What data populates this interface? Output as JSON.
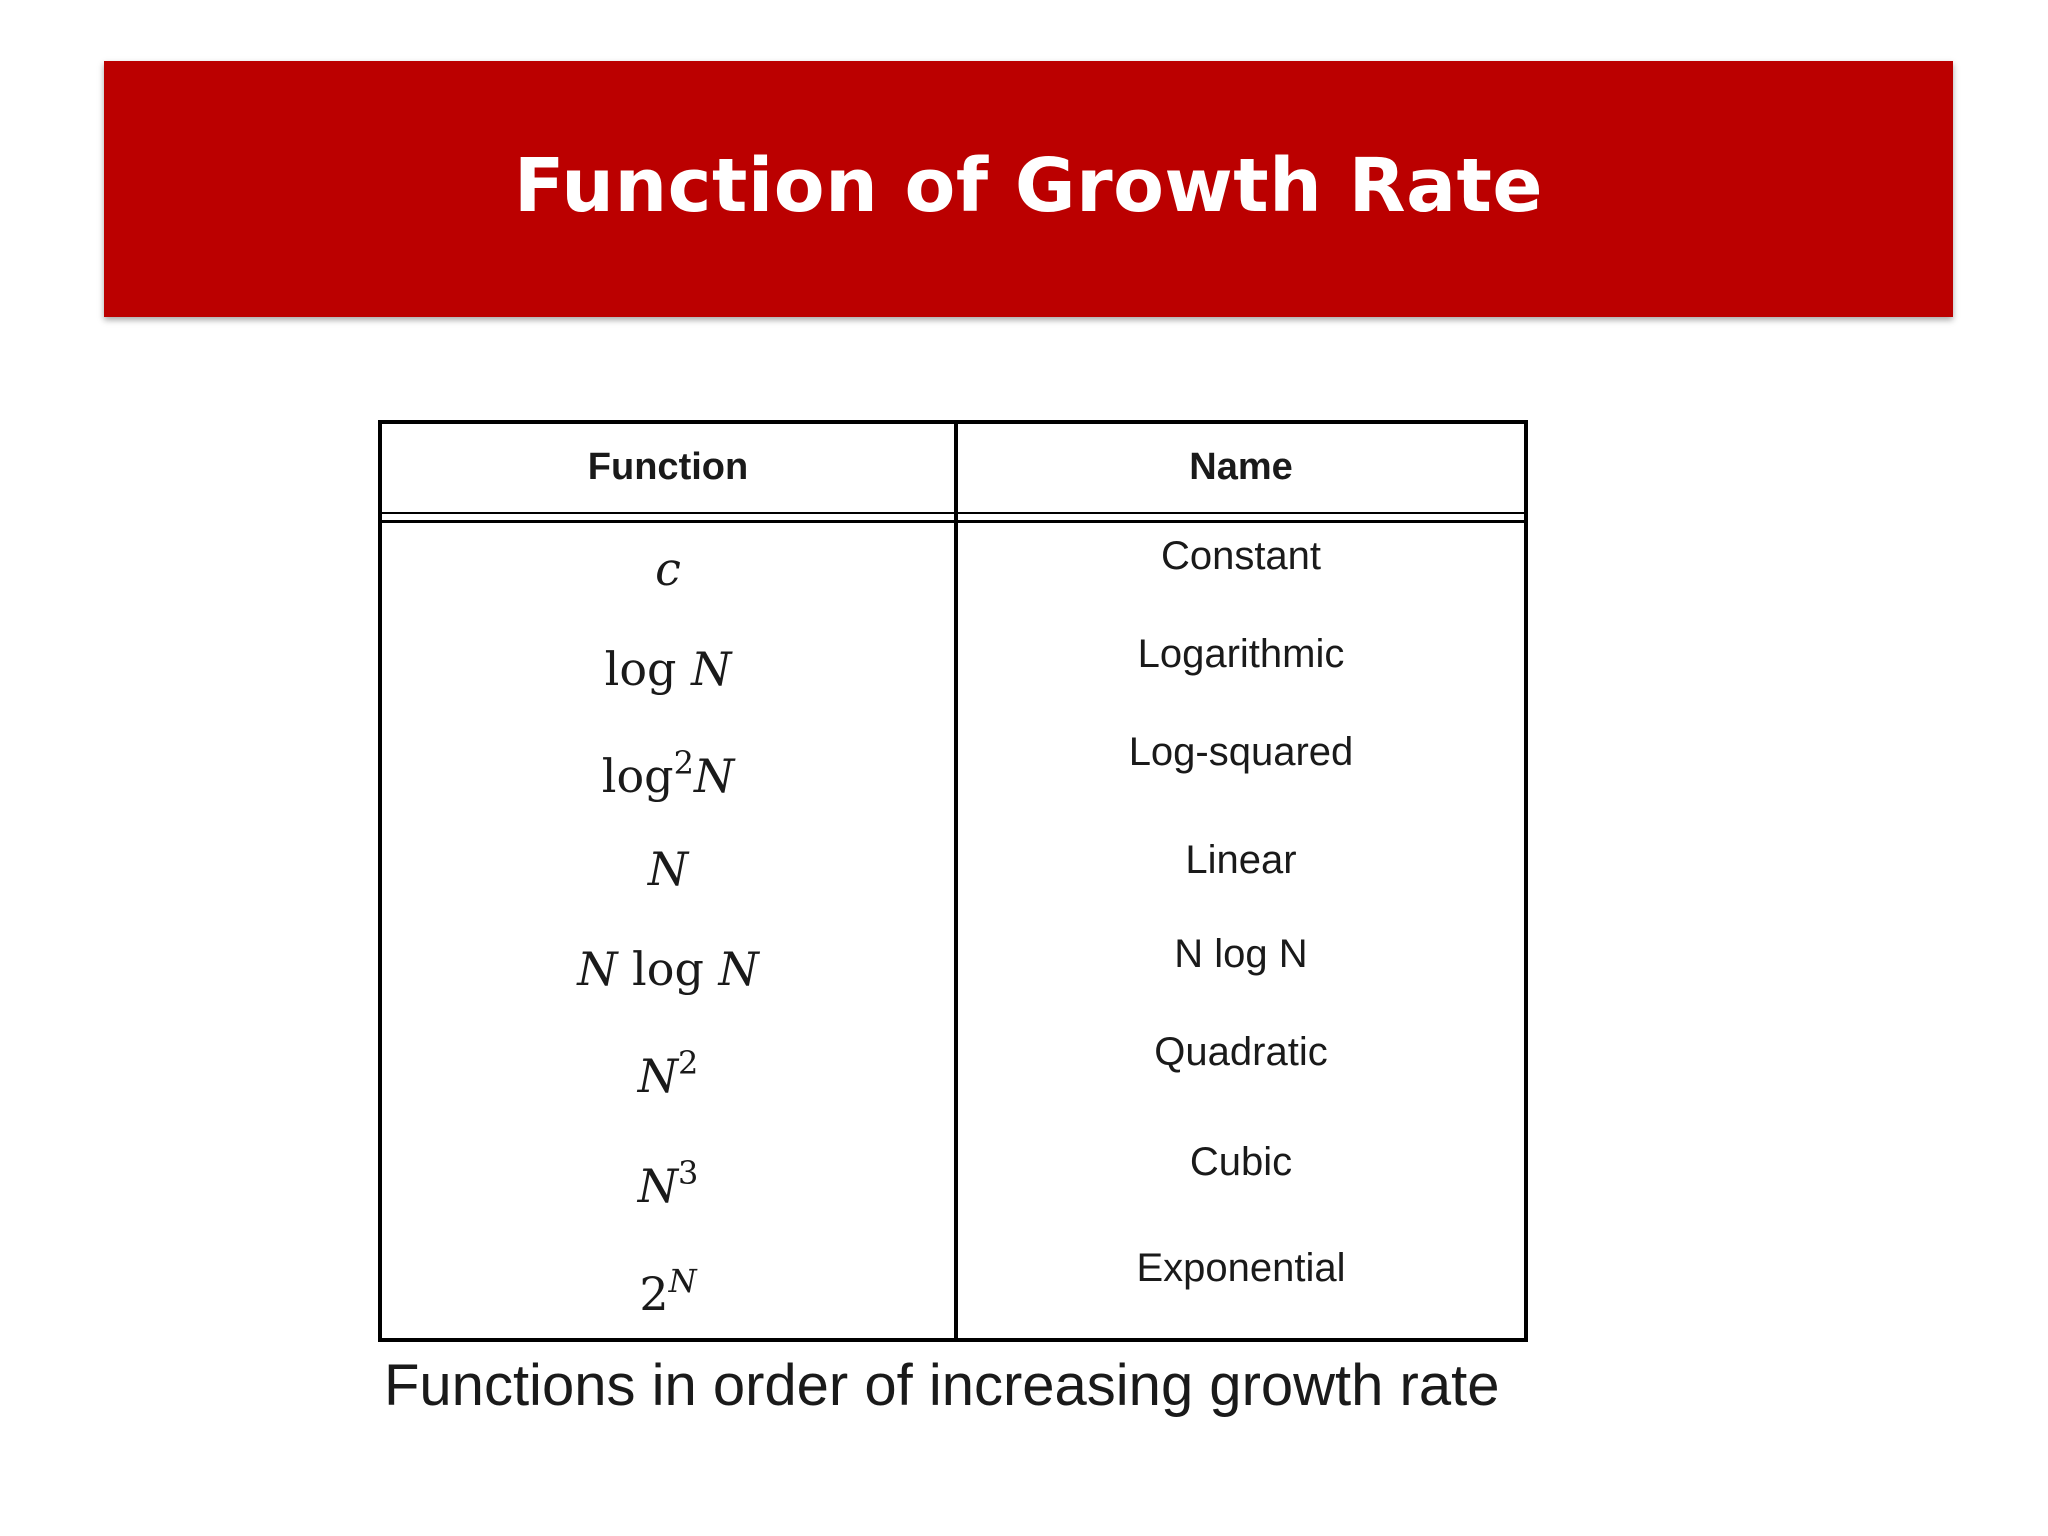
{
  "title": "Function of Growth Rate",
  "colors": {
    "banner": "#bb0000",
    "title_text": "#ffffff"
  },
  "table": {
    "headers": {
      "function": "Function",
      "name": "Name"
    },
    "rows": [
      {
        "function": "c",
        "name": "Constant"
      },
      {
        "function": "log N",
        "name": "Logarithmic"
      },
      {
        "function": "log²N",
        "name": "Log-squared"
      },
      {
        "function": "N",
        "name": "Linear"
      },
      {
        "function": "N log N",
        "name": "N log N"
      },
      {
        "function": "N²",
        "name": "Quadratic"
      },
      {
        "function": "N³",
        "name": "Cubic"
      },
      {
        "function": "2ᴺ",
        "name": "Exponential"
      }
    ]
  },
  "caption": "Functions in order of increasing growth rate"
}
